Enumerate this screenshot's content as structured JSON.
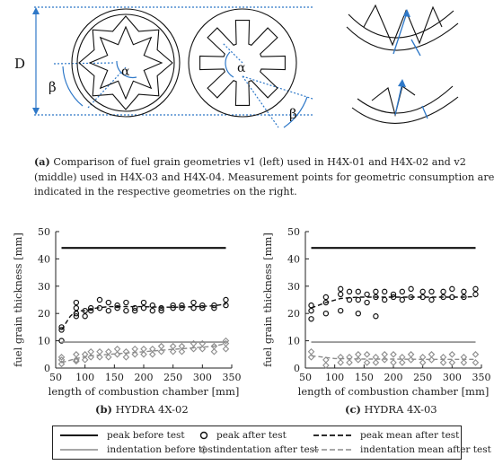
{
  "figure_a": {
    "labels": {
      "D": "D",
      "beta": "β",
      "alpha": "α"
    },
    "caption": {
      "tag": "(a)",
      "text": "Comparison of fuel grain geometries v1 (left) used in H4X-01 and H4X-02 and v2 (middle) used in H4X-03 and H4X-04. Measurement points for geometric consumption are indicated in the respective geometries on the right."
    }
  },
  "chart_data": [
    {
      "type": "scatter",
      "subcaption_tag": "(b)",
      "subcaption": "HYDRA 4X-02",
      "xlabel": "length of combustion chamber [mm]",
      "ylabel": "fuel grain thickness [mm]",
      "xlim": [
        50,
        350
      ],
      "ylim": [
        0,
        50
      ],
      "xticks": [
        50,
        100,
        150,
        200,
        250,
        300,
        350
      ],
      "yticks": [
        0,
        10,
        20,
        30,
        40,
        50
      ],
      "grid": false,
      "series": [
        {
          "name": "peak before test",
          "style": "line",
          "x": [
            60,
            340
          ],
          "y": [
            44,
            44
          ]
        },
        {
          "name": "peak after test",
          "style": "circle",
          "x": [
            60,
            60,
            60,
            85,
            85,
            85,
            85,
            100,
            100,
            110,
            110,
            125,
            125,
            140,
            140,
            155,
            155,
            170,
            170,
            185,
            185,
            200,
            200,
            215,
            215,
            230,
            230,
            250,
            250,
            265,
            265,
            285,
            285,
            300,
            300,
            320,
            320,
            340,
            340
          ],
          "y": [
            10,
            15,
            14,
            24,
            22,
            20,
            19,
            21,
            19,
            22,
            21,
            25,
            22,
            24,
            21,
            23,
            22,
            24,
            21,
            22,
            21,
            24,
            22,
            23,
            21,
            22,
            21,
            23,
            22,
            23,
            22,
            24,
            22,
            23,
            22,
            23,
            22,
            25,
            23
          ]
        },
        {
          "name": "peak mean after test",
          "style": "dashed",
          "x": [
            60,
            75,
            85,
            100,
            120,
            140,
            170,
            200,
            230,
            260,
            290,
            320,
            340
          ],
          "y": [
            14,
            19,
            21,
            21,
            22,
            22.5,
            22.5,
            22.5,
            22.3,
            22.3,
            22.5,
            22.8,
            23.5
          ]
        },
        {
          "name": "indentation before test",
          "style": "gray-line",
          "x": [
            60,
            340
          ],
          "y": [
            9.5,
            9.5
          ]
        },
        {
          "name": "indentation after test",
          "style": "diamond",
          "x": [
            60,
            60,
            60,
            85,
            85,
            85,
            100,
            100,
            110,
            110,
            125,
            125,
            140,
            140,
            155,
            155,
            170,
            170,
            185,
            185,
            200,
            200,
            215,
            215,
            230,
            230,
            250,
            250,
            265,
            265,
            285,
            285,
            300,
            300,
            320,
            320,
            340,
            340,
            340
          ],
          "y": [
            1.5,
            4,
            3,
            5,
            3,
            2.5,
            5,
            3,
            6,
            4,
            6,
            4,
            6,
            4,
            7,
            5,
            6,
            4,
            7,
            5,
            7,
            5,
            7,
            5,
            8,
            6,
            8,
            6,
            8,
            6,
            9,
            7,
            9,
            7,
            8,
            6,
            10,
            9,
            7
          ]
        },
        {
          "name": "indentation mean after test",
          "style": "gray-dashed",
          "x": [
            60,
            85,
            110,
            140,
            170,
            200,
            230,
            260,
            290,
            320,
            340
          ],
          "y": [
            2,
            3.5,
            4.5,
            5,
            5.5,
            6,
            6.5,
            7,
            7.5,
            8,
            9
          ]
        }
      ]
    },
    {
      "type": "scatter",
      "subcaption_tag": "(c)",
      "subcaption": "HYDRA 4X-03",
      "xlabel": "length of combustion chamber [mm]",
      "ylabel": "fuel grain thickness [mm]",
      "xlim": [
        50,
        350
      ],
      "ylim": [
        0,
        50
      ],
      "xticks": [
        50,
        100,
        150,
        200,
        250,
        300,
        350
      ],
      "yticks": [
        0,
        10,
        20,
        30,
        40,
        50
      ],
      "grid": false,
      "series": [
        {
          "name": "peak before test",
          "style": "line",
          "x": [
            60,
            340
          ],
          "y": [
            44,
            44
          ]
        },
        {
          "name": "peak after test",
          "style": "circle",
          "x": [
            60,
            60,
            60,
            85,
            85,
            85,
            110,
            110,
            110,
            125,
            125,
            140,
            140,
            140,
            155,
            155,
            170,
            170,
            170,
            185,
            185,
            200,
            200,
            215,
            215,
            230,
            230,
            250,
            250,
            265,
            265,
            285,
            285,
            300,
            300,
            320,
            320,
            340,
            340
          ],
          "y": [
            18,
            21,
            23,
            26,
            24,
            20,
            29,
            27,
            21,
            28,
            25,
            28,
            25,
            20,
            27,
            24,
            28,
            26,
            19,
            28,
            25,
            27,
            26,
            28,
            25,
            29,
            26,
            28,
            26,
            28,
            25,
            28,
            26,
            29,
            26,
            28,
            26,
            29,
            27
          ]
        },
        {
          "name": "peak mean after test",
          "style": "dashed",
          "x": [
            60,
            85,
            110,
            140,
            170,
            200,
            230,
            260,
            290,
            320,
            340
          ],
          "y": [
            22,
            24,
            25.5,
            26,
            26,
            26,
            26,
            26,
            26,
            26,
            26.2
          ]
        },
        {
          "name": "indentation before test",
          "style": "gray-line",
          "x": [
            60,
            340
          ],
          "y": [
            9.5,
            9.5
          ]
        },
        {
          "name": "indentation after test",
          "style": "diamond",
          "x": [
            60,
            60,
            85,
            85,
            110,
            110,
            125,
            125,
            140,
            140,
            155,
            155,
            170,
            170,
            185,
            185,
            200,
            200,
            215,
            215,
            230,
            230,
            250,
            250,
            265,
            265,
            285,
            285,
            300,
            300,
            320,
            320,
            340,
            340
          ],
          "y": [
            6,
            4,
            3,
            1,
            4,
            2,
            4,
            2,
            5,
            3,
            5,
            2,
            4,
            2,
            5,
            3,
            5,
            2,
            4,
            2,
            5,
            3,
            4,
            2,
            5,
            3,
            4,
            2,
            5,
            2,
            4,
            2,
            5,
            2
          ]
        },
        {
          "name": "indentation mean after test",
          "style": "gray-dashed",
          "x": [
            60,
            100,
            150,
            200,
            250,
            300,
            340
          ],
          "y": [
            4.5,
            3.5,
            3.3,
            3.3,
            3.2,
            3.2,
            3.2
          ]
        }
      ]
    }
  ],
  "legend": {
    "items": [
      {
        "label": "peak before test",
        "style": "line"
      },
      {
        "label": "peak after test",
        "style": "circle"
      },
      {
        "label": "peak mean after test",
        "style": "dashed"
      },
      {
        "label": "indentation before test",
        "style": "gray-line"
      },
      {
        "label": "indentation after test",
        "style": "diamond"
      },
      {
        "label": "indentation mean after test",
        "style": "gray-dashed"
      }
    ]
  },
  "colors": {
    "black": "#111111",
    "gray": "#8c8c8c",
    "blue": "#2e78c8"
  }
}
